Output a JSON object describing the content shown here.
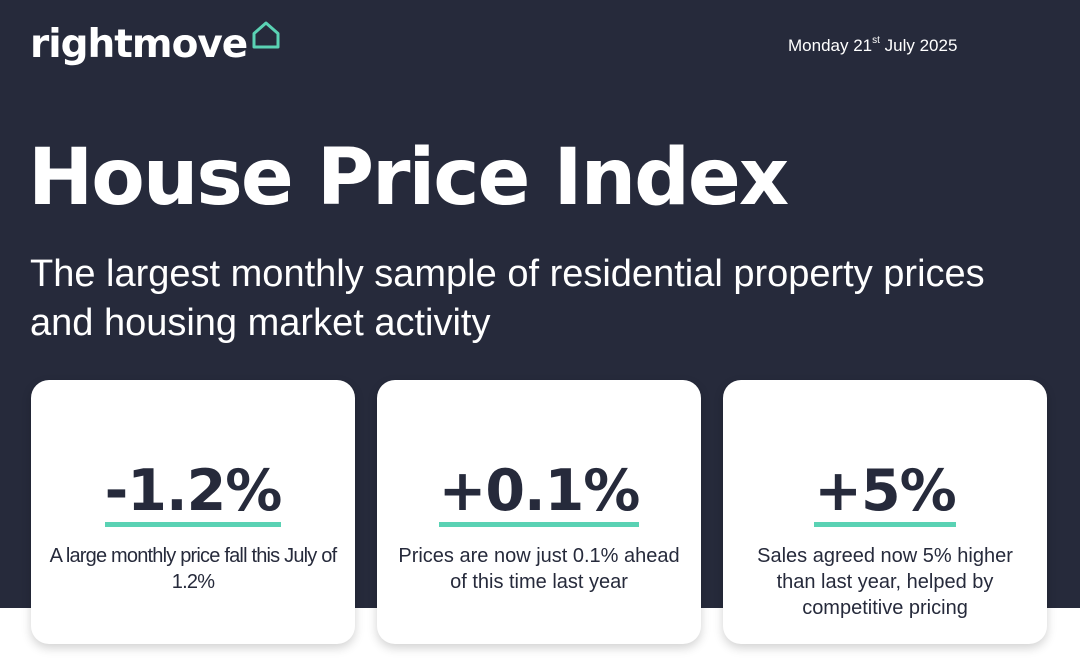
{
  "brand": {
    "logo_text": "rightmove",
    "logo_icon": "house-outline-icon",
    "accent_color": "#5ad2b4",
    "navy_color": "#262a3b"
  },
  "header": {
    "date_prefix": "Monday 21",
    "date_ordinal": "st",
    "date_suffix": " July 2025"
  },
  "hero": {
    "title": "House Price Index",
    "subtitle": "The largest monthly sample of residential property prices and housing market activity"
  },
  "cards": [
    {
      "value": "-1.2%",
      "description": "A large monthly price fall this July of 1.2%"
    },
    {
      "value": "+0.1%",
      "description": "Prices are now just 0.1% ahead of this time last year"
    },
    {
      "value": "+5%",
      "description": "Sales agreed now 5% higher than last year, helped by competitive pricing"
    }
  ]
}
